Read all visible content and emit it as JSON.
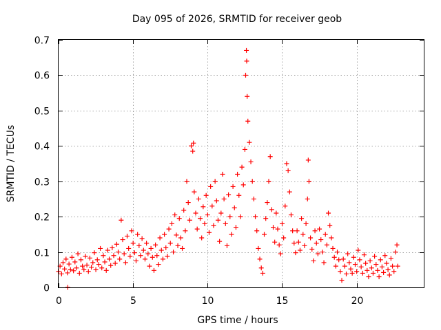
{
  "chart_data": {
    "type": "scatter",
    "title": "Day 095 of 2026, SRMTID for receiver geob",
    "xlabel": "GPS time / hours",
    "ylabel": "SRMTID / TECUs",
    "xlim": [
      0,
      24.5
    ],
    "ylim": [
      0,
      0.7
    ],
    "xticks": [
      0,
      5,
      10,
      15,
      20
    ],
    "xtick_labels": [
      "0",
      "5",
      "10",
      "15",
      "20"
    ],
    "yticks": [
      0,
      0.1,
      0.2,
      0.3,
      0.4,
      0.5,
      0.6,
      0.7
    ],
    "ytick_labels": [
      "0",
      "0.1",
      "0.2",
      "0.3",
      "0.4",
      "0.5",
      "0.6",
      "0.7"
    ],
    "grid": true,
    "marker": "+",
    "color": "#ff0000",
    "series": [
      {
        "name": "SRMTID",
        "points": [
          [
            0.0,
            0.045
          ],
          [
            0.1,
            0.06
          ],
          [
            0.2,
            0.038
          ],
          [
            0.3,
            0.07
          ],
          [
            0.4,
            0.052
          ],
          [
            0.5,
            0.08
          ],
          [
            0.6,
            0.041
          ],
          [
            0.62,
            0.0
          ],
          [
            0.7,
            0.066
          ],
          [
            0.8,
            0.05
          ],
          [
            0.9,
            0.085
          ],
          [
            1.0,
            0.047
          ],
          [
            1.1,
            0.072
          ],
          [
            1.2,
            0.055
          ],
          [
            1.3,
            0.095
          ],
          [
            1.4,
            0.04
          ],
          [
            1.5,
            0.078
          ],
          [
            1.6,
            0.06
          ],
          [
            1.7,
            0.05
          ],
          [
            1.8,
            0.088
          ],
          [
            1.9,
            0.063
          ],
          [
            2.0,
            0.045
          ],
          [
            2.1,
            0.083
          ],
          [
            2.2,
            0.057
          ],
          [
            2.3,
            0.07
          ],
          [
            2.4,
            0.098
          ],
          [
            2.5,
            0.05
          ],
          [
            2.6,
            0.078
          ],
          [
            2.7,
            0.065
          ],
          [
            2.8,
            0.11
          ],
          [
            2.9,
            0.055
          ],
          [
            3.0,
            0.09
          ],
          [
            3.1,
            0.072
          ],
          [
            3.2,
            0.048
          ],
          [
            3.3,
            0.105
          ],
          [
            3.4,
            0.08
          ],
          [
            3.5,
            0.062
          ],
          [
            3.6,
            0.112
          ],
          [
            3.7,
            0.09
          ],
          [
            3.8,
            0.068
          ],
          [
            3.9,
            0.122
          ],
          [
            4.0,
            0.1
          ],
          [
            4.1,
            0.08
          ],
          [
            4.2,
            0.19
          ],
          [
            4.3,
            0.135
          ],
          [
            4.4,
            0.095
          ],
          [
            4.5,
            0.07
          ],
          [
            4.6,
            0.145
          ],
          [
            4.7,
            0.11
          ],
          [
            4.8,
            0.088
          ],
          [
            4.9,
            0.16
          ],
          [
            5.0,
            0.125
          ],
          [
            5.1,
            0.098
          ],
          [
            5.2,
            0.075
          ],
          [
            5.3,
            0.15
          ],
          [
            5.4,
            0.118
          ],
          [
            5.5,
            0.09
          ],
          [
            5.6,
            0.138
          ],
          [
            5.7,
            0.105
          ],
          [
            5.8,
            0.08
          ],
          [
            5.9,
            0.125
          ],
          [
            6.0,
            0.095
          ],
          [
            6.1,
            0.06
          ],
          [
            6.2,
            0.11
          ],
          [
            6.3,
            0.085
          ],
          [
            6.4,
            0.048
          ],
          [
            6.5,
            0.12
          ],
          [
            6.6,
            0.09
          ],
          [
            6.7,
            0.065
          ],
          [
            6.8,
            0.14
          ],
          [
            6.9,
            0.105
          ],
          [
            7.0,
            0.08
          ],
          [
            7.1,
            0.15
          ],
          [
            7.2,
            0.112
          ],
          [
            7.3,
            0.088
          ],
          [
            7.4,
            0.165
          ],
          [
            7.5,
            0.125
          ],
          [
            7.6,
            0.18
          ],
          [
            7.7,
            0.1
          ],
          [
            7.8,
            0.205
          ],
          [
            7.9,
            0.148
          ],
          [
            8.0,
            0.118
          ],
          [
            8.1,
            0.195
          ],
          [
            8.2,
            0.14
          ],
          [
            8.3,
            0.11
          ],
          [
            8.4,
            0.218
          ],
          [
            8.5,
            0.16
          ],
          [
            8.6,
            0.3
          ],
          [
            8.7,
            0.24
          ],
          [
            8.8,
            0.19
          ],
          [
            8.9,
            0.4
          ],
          [
            9.0,
            0.385
          ],
          [
            9.05,
            0.408
          ],
          [
            9.1,
            0.27
          ],
          [
            9.2,
            0.21
          ],
          [
            9.3,
            0.165
          ],
          [
            9.4,
            0.25
          ],
          [
            9.5,
            0.195
          ],
          [
            9.6,
            0.14
          ],
          [
            9.7,
            0.228
          ],
          [
            9.8,
            0.18
          ],
          [
            9.9,
            0.26
          ],
          [
            10.0,
            0.205
          ],
          [
            10.1,
            0.155
          ],
          [
            10.2,
            0.285
          ],
          [
            10.3,
            0.23
          ],
          [
            10.4,
            0.175
          ],
          [
            10.5,
            0.3
          ],
          [
            10.6,
            0.245
          ],
          [
            10.7,
            0.19
          ],
          [
            10.8,
            0.13
          ],
          [
            10.9,
            0.21
          ],
          [
            11.0,
            0.32
          ],
          [
            11.1,
            0.25
          ],
          [
            11.2,
            0.18
          ],
          [
            11.3,
            0.118
          ],
          [
            11.4,
            0.262
          ],
          [
            11.5,
            0.2
          ],
          [
            11.6,
            0.15
          ],
          [
            11.7,
            0.285
          ],
          [
            11.8,
            0.225
          ],
          [
            11.9,
            0.17
          ],
          [
            12.0,
            0.32
          ],
          [
            12.1,
            0.26
          ],
          [
            12.2,
            0.2
          ],
          [
            12.3,
            0.34
          ],
          [
            12.4,
            0.29
          ],
          [
            12.5,
            0.39
          ],
          [
            12.55,
            0.6
          ],
          [
            12.6,
            0.67
          ],
          [
            12.62,
            0.64
          ],
          [
            12.65,
            0.54
          ],
          [
            12.7,
            0.47
          ],
          [
            12.8,
            0.41
          ],
          [
            12.9,
            0.355
          ],
          [
            13.0,
            0.3
          ],
          [
            13.1,
            0.25
          ],
          [
            13.2,
            0.2
          ],
          [
            13.3,
            0.16
          ],
          [
            13.4,
            0.11
          ],
          [
            13.5,
            0.08
          ],
          [
            13.6,
            0.055
          ],
          [
            13.7,
            0.04
          ],
          [
            13.8,
            0.15
          ],
          [
            13.9,
            0.195
          ],
          [
            14.0,
            0.24
          ],
          [
            14.1,
            0.3
          ],
          [
            14.2,
            0.37
          ],
          [
            14.3,
            0.22
          ],
          [
            14.4,
            0.17
          ],
          [
            14.5,
            0.128
          ],
          [
            14.6,
            0.21
          ],
          [
            14.7,
            0.165
          ],
          [
            14.8,
            0.12
          ],
          [
            14.9,
            0.095
          ],
          [
            15.0,
            0.18
          ],
          [
            15.1,
            0.14
          ],
          [
            15.2,
            0.23
          ],
          [
            15.3,
            0.35
          ],
          [
            15.4,
            0.33
          ],
          [
            15.5,
            0.27
          ],
          [
            15.6,
            0.205
          ],
          [
            15.7,
            0.16
          ],
          [
            15.8,
            0.125
          ],
          [
            15.9,
            0.098
          ],
          [
            16.0,
            0.16
          ],
          [
            16.1,
            0.128
          ],
          [
            16.2,
            0.105
          ],
          [
            16.3,
            0.195
          ],
          [
            16.4,
            0.15
          ],
          [
            16.5,
            0.118
          ],
          [
            16.6,
            0.18
          ],
          [
            16.7,
            0.25
          ],
          [
            16.75,
            0.36
          ],
          [
            16.8,
            0.3
          ],
          [
            16.9,
            0.14
          ],
          [
            17.0,
            0.108
          ],
          [
            17.1,
            0.075
          ],
          [
            17.2,
            0.16
          ],
          [
            17.3,
            0.125
          ],
          [
            17.4,
            0.095
          ],
          [
            17.5,
            0.165
          ],
          [
            17.6,
            0.135
          ],
          [
            17.7,
            0.1
          ],
          [
            17.8,
            0.07
          ],
          [
            17.9,
            0.15
          ],
          [
            18.0,
            0.12
          ],
          [
            18.1,
            0.21
          ],
          [
            18.2,
            0.175
          ],
          [
            18.3,
            0.14
          ],
          [
            18.4,
            0.11
          ],
          [
            18.5,
            0.085
          ],
          [
            18.6,
            0.06
          ],
          [
            18.7,
            0.1
          ],
          [
            18.8,
            0.078
          ],
          [
            18.9,
            0.045
          ],
          [
            19.0,
            0.02
          ],
          [
            19.1,
            0.08
          ],
          [
            19.2,
            0.06
          ],
          [
            19.3,
            0.038
          ],
          [
            19.4,
            0.095
          ],
          [
            19.5,
            0.07
          ],
          [
            19.6,
            0.052
          ],
          [
            19.7,
            0.04
          ],
          [
            19.8,
            0.085
          ],
          [
            19.9,
            0.065
          ],
          [
            20.0,
            0.045
          ],
          [
            20.1,
            0.105
          ],
          [
            20.2,
            0.078
          ],
          [
            20.3,
            0.058
          ],
          [
            20.4,
            0.04
          ],
          [
            20.5,
            0.092
          ],
          [
            20.6,
            0.068
          ],
          [
            20.7,
            0.048
          ],
          [
            20.8,
            0.03
          ],
          [
            20.9,
            0.075
          ],
          [
            21.0,
            0.055
          ],
          [
            21.1,
            0.04
          ],
          [
            21.2,
            0.088
          ],
          [
            21.3,
            0.065
          ],
          [
            21.4,
            0.048
          ],
          [
            21.5,
            0.03
          ],
          [
            21.6,
            0.078
          ],
          [
            21.7,
            0.058
          ],
          [
            21.8,
            0.042
          ],
          [
            21.9,
            0.09
          ],
          [
            22.0,
            0.068
          ],
          [
            22.1,
            0.05
          ],
          [
            22.2,
            0.035
          ],
          [
            22.3,
            0.082
          ],
          [
            22.4,
            0.06
          ],
          [
            22.5,
            0.045
          ],
          [
            22.6,
            0.1
          ],
          [
            22.7,
            0.12
          ],
          [
            22.75,
            0.06
          ]
        ]
      }
    ]
  }
}
